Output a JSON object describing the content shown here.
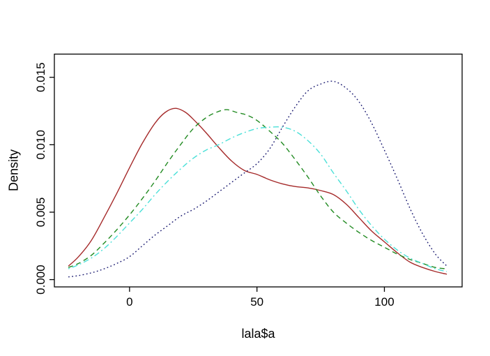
{
  "chart_data": {
    "type": "line",
    "title": "",
    "xlabel": "lala$a",
    "ylabel": "Density",
    "xlim": [
      -29.5,
      130.5
    ],
    "ylim": [
      -0.00054,
      0.01672
    ],
    "grid": false,
    "legend": "none",
    "x_ticks": [
      {
        "v": 0,
        "label": "0"
      },
      {
        "v": 50,
        "label": "50"
      },
      {
        "v": 100,
        "label": "100"
      }
    ],
    "y_ticks": [
      {
        "v": 0.0,
        "label": "0.000"
      },
      {
        "v": 0.005,
        "label": "0.005"
      },
      {
        "v": 0.01,
        "label": "0.010"
      },
      {
        "v": 0.015,
        "label": "0.015"
      }
    ],
    "axis_color": "#000000",
    "series": [
      {
        "name": "density-curve-solid-red",
        "color": "#A52A2A",
        "style": "solid",
        "points": [
          [
            -24,
            0.001
          ],
          [
            -20,
            0.0017
          ],
          [
            -15,
            0.0029
          ],
          [
            -10,
            0.0046
          ],
          [
            -5,
            0.0064
          ],
          [
            0,
            0.0083
          ],
          [
            5,
            0.0101
          ],
          [
            10,
            0.0116
          ],
          [
            14,
            0.0124
          ],
          [
            18,
            0.0127
          ],
          [
            22,
            0.0124
          ],
          [
            26,
            0.0117
          ],
          [
            30,
            0.0109
          ],
          [
            35,
            0.0098
          ],
          [
            40,
            0.0088
          ],
          [
            45,
            0.0081
          ],
          [
            50,
            0.0078
          ],
          [
            55,
            0.0074
          ],
          [
            60,
            0.0071
          ],
          [
            65,
            0.0069
          ],
          [
            70,
            0.0068
          ],
          [
            75,
            0.0066
          ],
          [
            80,
            0.0063
          ],
          [
            85,
            0.0056
          ],
          [
            90,
            0.0046
          ],
          [
            95,
            0.0036
          ],
          [
            100,
            0.0028
          ],
          [
            105,
            0.002
          ],
          [
            110,
            0.0013
          ],
          [
            115,
            0.0009
          ],
          [
            120,
            0.0006
          ],
          [
            124.5,
            0.0004
          ]
        ]
      },
      {
        "name": "density-curve-dashed-green",
        "color": "#228B22",
        "style": "dashed",
        "points": [
          [
            -24,
            0.0009
          ],
          [
            -20,
            0.0012
          ],
          [
            -15,
            0.0018
          ],
          [
            -10,
            0.0027
          ],
          [
            -5,
            0.0037
          ],
          [
            0,
            0.0048
          ],
          [
            5,
            0.006
          ],
          [
            10,
            0.0073
          ],
          [
            15,
            0.0087
          ],
          [
            20,
            0.01
          ],
          [
            25,
            0.0112
          ],
          [
            30,
            0.012
          ],
          [
            34,
            0.0124
          ],
          [
            38,
            0.0126
          ],
          [
            42,
            0.0124
          ],
          [
            46,
            0.0122
          ],
          [
            50,
            0.0118
          ],
          [
            55,
            0.011
          ],
          [
            60,
            0.0101
          ],
          [
            65,
            0.0089
          ],
          [
            70,
            0.0076
          ],
          [
            75,
            0.0062
          ],
          [
            80,
            0.005
          ],
          [
            85,
            0.0042
          ],
          [
            90,
            0.0035
          ],
          [
            95,
            0.0029
          ],
          [
            100,
            0.0024
          ],
          [
            105,
            0.0019
          ],
          [
            110,
            0.0015
          ],
          [
            115,
            0.0012
          ],
          [
            120,
            0.0009
          ],
          [
            124.5,
            0.0008
          ]
        ]
      },
      {
        "name": "density-curve-dashdot-cyan",
        "color": "#4BE0D8",
        "style": "dashdot",
        "points": [
          [
            -24,
            0.0008
          ],
          [
            -20,
            0.0011
          ],
          [
            -15,
            0.0016
          ],
          [
            -10,
            0.0023
          ],
          [
            -5,
            0.0032
          ],
          [
            0,
            0.0042
          ],
          [
            5,
            0.0052
          ],
          [
            10,
            0.0063
          ],
          [
            15,
            0.0073
          ],
          [
            20,
            0.0082
          ],
          [
            25,
            0.009
          ],
          [
            30,
            0.0096
          ],
          [
            35,
            0.01
          ],
          [
            40,
            0.0105
          ],
          [
            45,
            0.0109
          ],
          [
            50,
            0.0112
          ],
          [
            55,
            0.0113
          ],
          [
            60,
            0.0113
          ],
          [
            65,
            0.011
          ],
          [
            70,
            0.0103
          ],
          [
            75,
            0.0093
          ],
          [
            80,
            0.0079
          ],
          [
            85,
            0.0066
          ],
          [
            90,
            0.0052
          ],
          [
            95,
            0.004
          ],
          [
            100,
            0.003
          ],
          [
            105,
            0.0022
          ],
          [
            110,
            0.0016
          ],
          [
            115,
            0.0012
          ],
          [
            120,
            0.0008
          ],
          [
            124.5,
            0.0006
          ]
        ]
      },
      {
        "name": "density-curve-dotted-navy",
        "color": "#191970",
        "style": "dotted",
        "points": [
          [
            -24,
            0.0002
          ],
          [
            -20,
            0.0003
          ],
          [
            -15,
            0.0005
          ],
          [
            -10,
            0.0008
          ],
          [
            -5,
            0.0012
          ],
          [
            0,
            0.0017
          ],
          [
            5,
            0.0025
          ],
          [
            10,
            0.0033
          ],
          [
            15,
            0.004
          ],
          [
            20,
            0.0047
          ],
          [
            25,
            0.0052
          ],
          [
            30,
            0.0058
          ],
          [
            35,
            0.0065
          ],
          [
            40,
            0.0072
          ],
          [
            45,
            0.0079
          ],
          [
            50,
            0.0086
          ],
          [
            55,
            0.0097
          ],
          [
            60,
            0.0113
          ],
          [
            65,
            0.0128
          ],
          [
            70,
            0.014
          ],
          [
            75,
            0.0145
          ],
          [
            80,
            0.0147
          ],
          [
            85,
            0.0142
          ],
          [
            90,
            0.0132
          ],
          [
            95,
            0.0116
          ],
          [
            100,
            0.0096
          ],
          [
            105,
            0.0075
          ],
          [
            110,
            0.0053
          ],
          [
            115,
            0.0034
          ],
          [
            120,
            0.0019
          ],
          [
            124.5,
            0.001
          ]
        ]
      }
    ]
  }
}
